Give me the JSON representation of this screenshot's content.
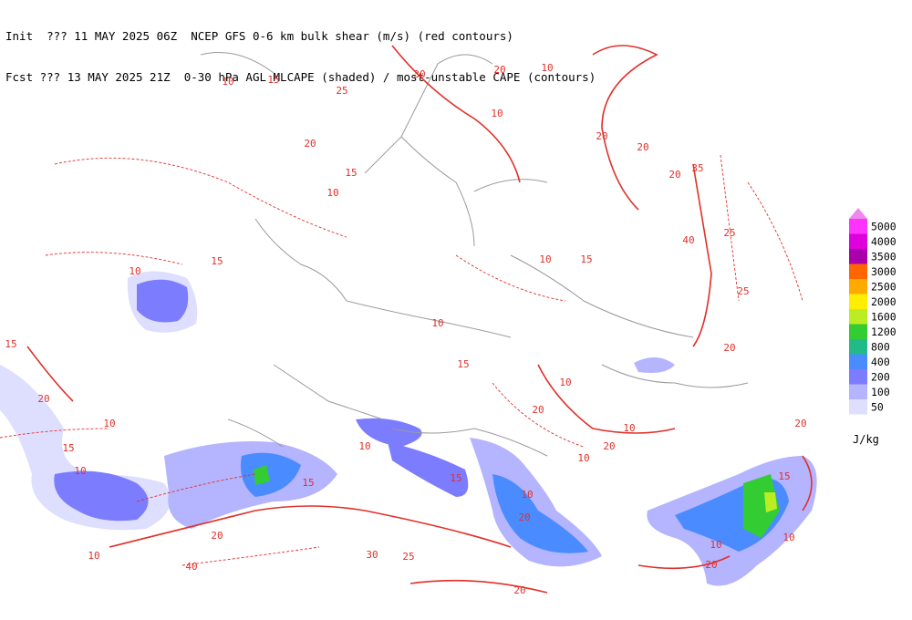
{
  "header": {
    "line1_left": "Init  ??? 11 MAY 2025 06Z",
    "line1_right": "NCEP GFS 0-6 km bulk shear (m/s) (red contours)",
    "line2_left": "Fcst ??? 13 MAY 2025 21Z",
    "line2_right": "0-30 hPa AGL MLCAPE (shaded) / most-unstable CAPE (contours)"
  },
  "legend": {
    "levels": [
      {
        "value": 5000,
        "color": "#ff33ff"
      },
      {
        "value": 4000,
        "color": "#dd00dd"
      },
      {
        "value": 3500,
        "color": "#aa00aa"
      },
      {
        "value": 3000,
        "color": "#ff6600"
      },
      {
        "value": 2500,
        "color": "#ffaa00"
      },
      {
        "value": 2000,
        "color": "#ffee00"
      },
      {
        "value": 1600,
        "color": "#bbee22"
      },
      {
        "value": 1200,
        "color": "#33cc33"
      },
      {
        "value": 800,
        "color": "#22bb88"
      },
      {
        "value": 400,
        "color": "#4a8cff"
      },
      {
        "value": 200,
        "color": "#7c7cff"
      },
      {
        "value": 100,
        "color": "#b4b4ff"
      },
      {
        "value": 50,
        "color": "#dedeff"
      }
    ],
    "unit": "J/kg"
  },
  "contour_labels": [
    "10",
    "15",
    "25",
    "20",
    "10",
    "15",
    "30",
    "20",
    "10",
    "10",
    "20",
    "20",
    "20",
    "35",
    "40",
    "25",
    "25",
    "20",
    "15",
    "10",
    "10",
    "15",
    "10",
    "20",
    "10",
    "15",
    "20",
    "10",
    "10",
    "15",
    "10",
    "15",
    "10",
    "15",
    "10",
    "20",
    "10",
    "20",
    "10",
    "20",
    "20",
    "30",
    "25",
    "10",
    "40",
    "20",
    "15",
    "10",
    "20",
    "15"
  ]
}
